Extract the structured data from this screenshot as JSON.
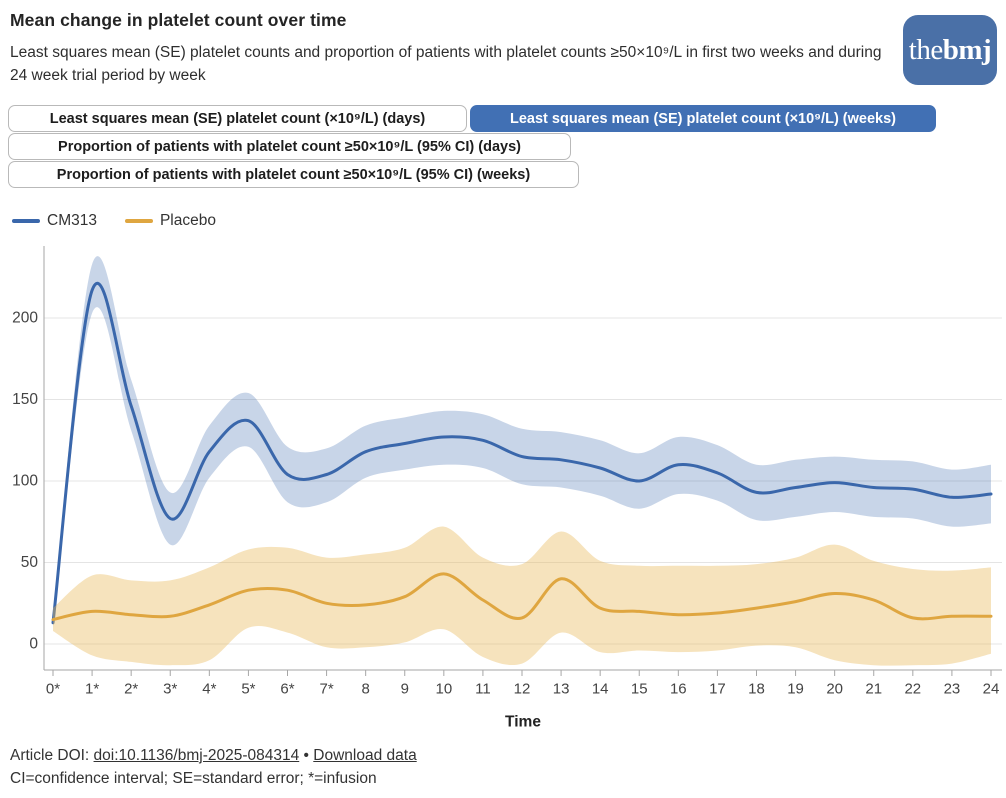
{
  "header": {
    "title": "Mean change in platelet count over time",
    "subtitle": "Least squares mean (SE) platelet counts and proportion of patients with platelet counts ≥50×10⁹/L in first two weeks and during 24 week trial period by week",
    "logo": {
      "the": "the",
      "bmj": "bmj"
    }
  },
  "tabs": [
    {
      "label": "Least squares mean (SE) platelet count (×10⁹/L) (days)",
      "active": false
    },
    {
      "label": "Least squares mean (SE) platelet count (×10⁹/L) (weeks)",
      "active": true
    },
    {
      "label": "Proportion of patients with platelet count ≥50×10⁹/L (95% CI) (days)",
      "active": false
    },
    {
      "label": "Proportion of patients with platelet count ≥50×10⁹/L (95% CI) (weeks)",
      "active": false
    }
  ],
  "legend": [
    {
      "label": "CM313",
      "color": "#3a67ab"
    },
    {
      "label": "Placebo",
      "color": "#dfa640"
    }
  ],
  "chart_data": {
    "type": "line",
    "title": "Least squares mean (SE) platelet count (×10⁹/L) (weeks)",
    "xlabel": "Time",
    "ylabel": "",
    "x": [
      0,
      1,
      2,
      3,
      4,
      5,
      6,
      7,
      8,
      9,
      10,
      11,
      12,
      13,
      14,
      15,
      16,
      17,
      18,
      19,
      20,
      21,
      22,
      23,
      24
    ],
    "x_tick_labels": [
      "0*",
      "1*",
      "2*",
      "3*",
      "4*",
      "5*",
      "6*",
      "7*",
      "8",
      "9",
      "10",
      "11",
      "12",
      "13",
      "14",
      "15",
      "16",
      "17",
      "18",
      "19",
      "20",
      "21",
      "22",
      "23",
      "24"
    ],
    "y_ticks": [
      0,
      50,
      100,
      150,
      200
    ],
    "ylim": [
      -16,
      235
    ],
    "grid": true,
    "legend_position": "top-left",
    "series": [
      {
        "name": "CM313",
        "color": "#3a67ab",
        "band_color": "#3a67ab",
        "band_opacity": 0.28,
        "values": [
          13,
          217,
          146,
          77,
          118,
          137,
          104,
          104,
          118,
          123,
          127,
          125,
          115,
          113,
          108,
          100,
          110,
          105,
          93,
          96,
          99,
          96,
          95,
          90,
          92
        ],
        "upper": [
          16,
          233,
          162,
          93,
          134,
          154,
          121,
          120,
          134,
          139,
          143,
          141,
          132,
          130,
          125,
          117,
          127,
          122,
          110,
          113,
          115,
          113,
          112,
          107,
          110
        ],
        "lower": [
          10,
          203,
          131,
          61,
          102,
          121,
          87,
          87,
          102,
          107,
          110,
          108,
          98,
          96,
          91,
          83,
          92,
          88,
          76,
          78,
          81,
          78,
          77,
          72,
          74
        ]
      },
      {
        "name": "Placebo",
        "color": "#dfa640",
        "band_color": "#e9b959",
        "band_opacity": 0.4,
        "values": [
          15,
          20,
          18,
          17,
          24,
          33,
          33,
          25,
          24,
          29,
          43,
          27,
          16,
          40,
          22,
          20,
          18,
          19,
          22,
          26,
          31,
          27,
          16,
          17,
          17
        ],
        "upper": [
          22,
          42,
          39,
          39,
          47,
          58,
          59,
          53,
          55,
          59,
          72,
          53,
          49,
          69,
          51,
          48,
          48,
          48,
          49,
          53,
          61,
          51,
          46,
          45,
          47
        ],
        "lower": [
          8,
          -7,
          -11,
          -13,
          -10,
          10,
          7,
          -2,
          -2,
          1,
          9,
          -8,
          -12,
          7,
          -5,
          -4,
          -5,
          -4,
          -1,
          -2,
          -10,
          -13,
          -13,
          -12,
          -6
        ]
      }
    ]
  },
  "footer": {
    "doi_prefix": "Article DOI: ",
    "doi_link": "doi:10.1136/bmj-2025-084314",
    "separator": " • ",
    "download_link": "Download data",
    "abbreviations": "CI=confidence interval; SE=standard error; *=infusion"
  }
}
